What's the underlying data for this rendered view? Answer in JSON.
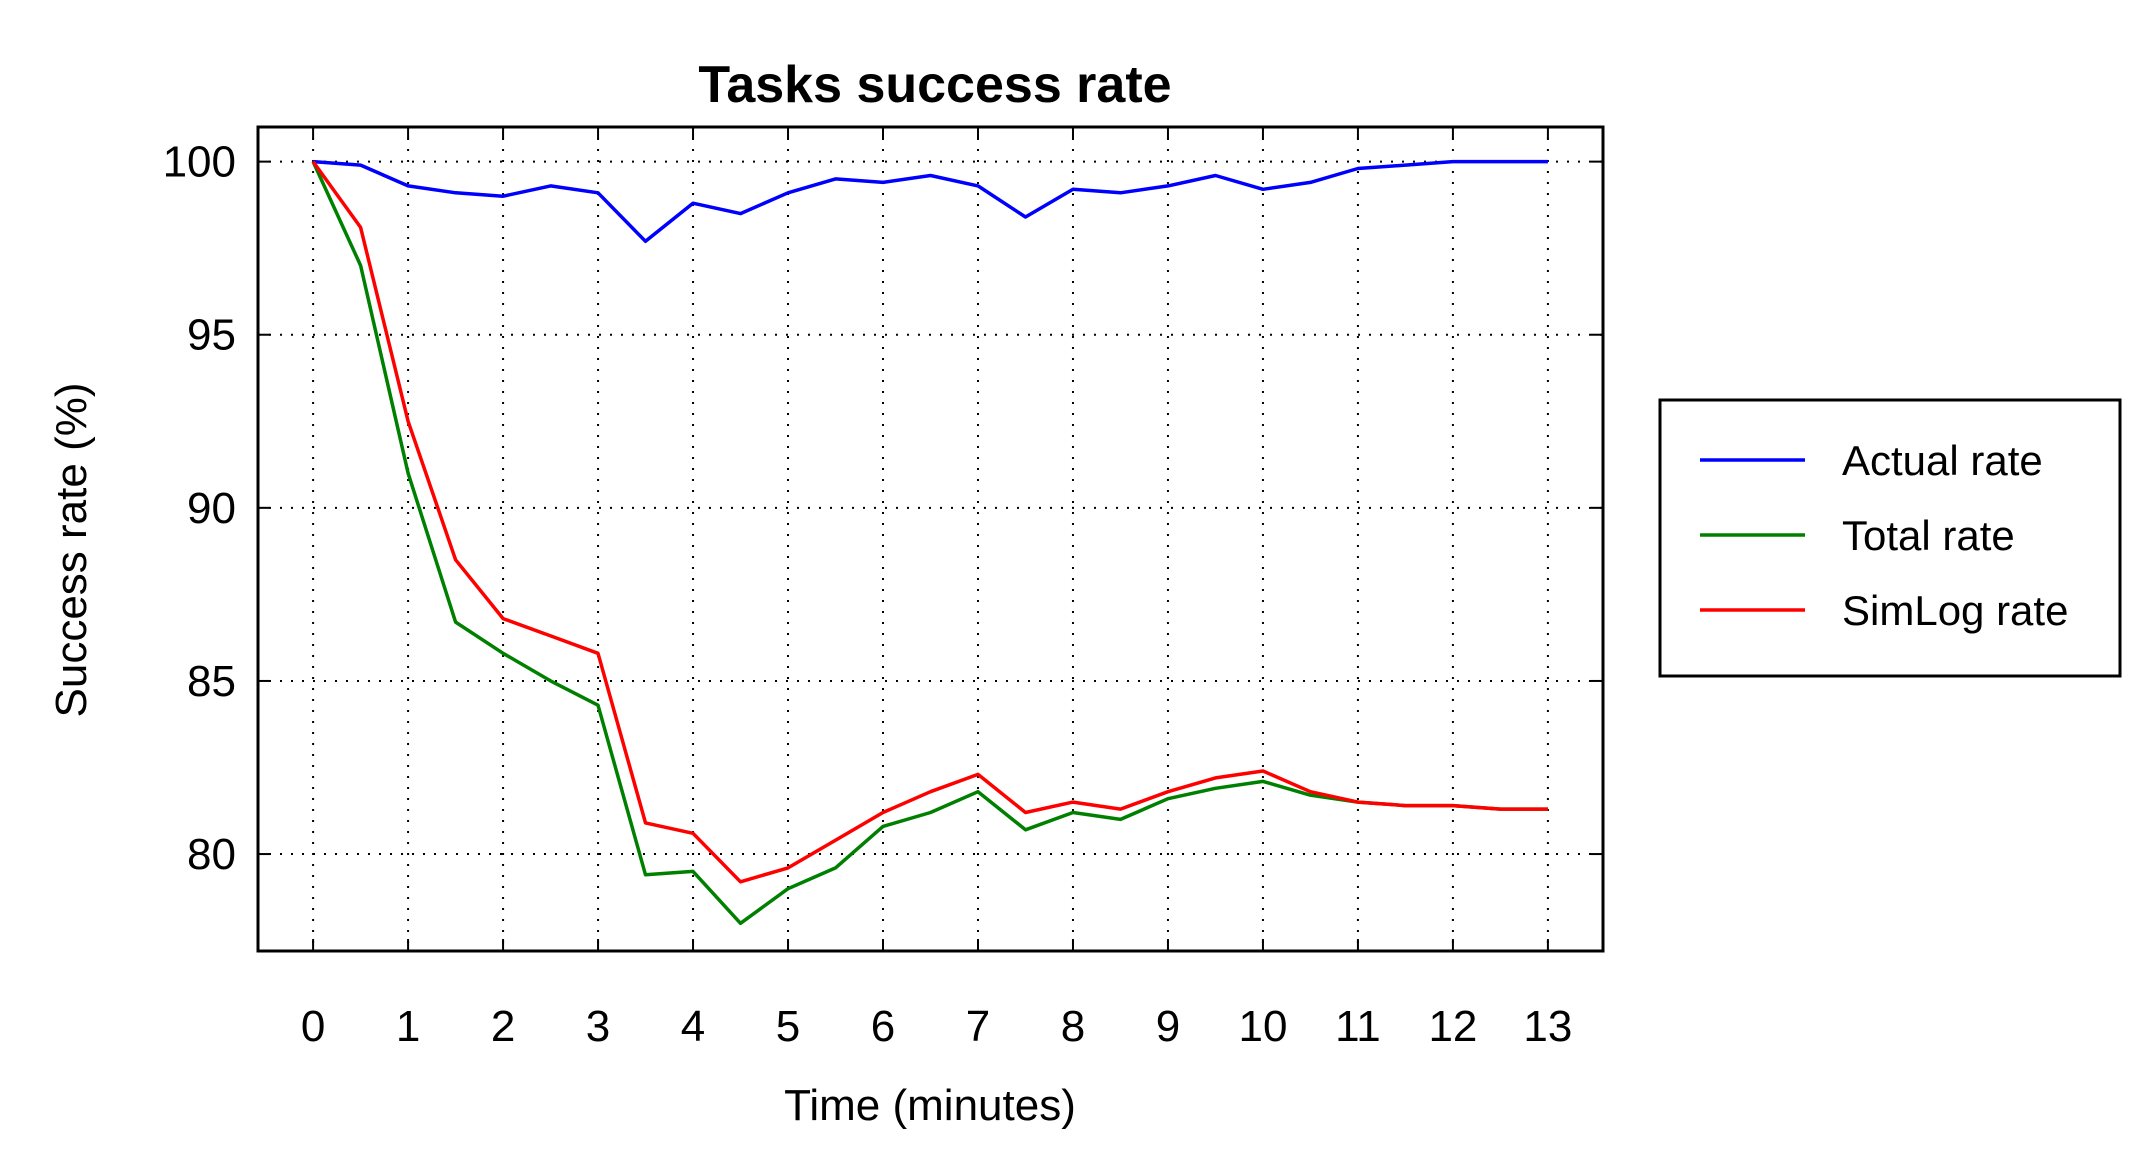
{
  "chart_data": {
    "type": "line",
    "title": "Tasks success rate",
    "xlabel": "Time (minutes)",
    "ylabel": "Success rate (%)",
    "xlim": [
      -0.58,
      13.58
    ],
    "ylim": [
      77.2,
      101
    ],
    "xticks": [
      0,
      1,
      2,
      3,
      4,
      5,
      6,
      7,
      8,
      9,
      10,
      11,
      12,
      13
    ],
    "yticks": [
      80,
      85,
      90,
      95,
      100
    ],
    "grid": true,
    "legend_position": "right-outside",
    "x": [
      0,
      0.5,
      1,
      1.5,
      2,
      2.5,
      3,
      3.5,
      4,
      4.5,
      5,
      5.5,
      6,
      6.5,
      7,
      7.5,
      8,
      8.5,
      9,
      9.5,
      10,
      10.5,
      11,
      11.5,
      12,
      12.5,
      13
    ],
    "series": [
      {
        "name": "Actual rate",
        "color": "#0000ff",
        "values": [
          100,
          99.9,
          99.3,
          99.1,
          99.0,
          99.3,
          99.1,
          97.7,
          98.8,
          98.5,
          99.1,
          99.5,
          99.4,
          99.6,
          99.3,
          98.4,
          99.2,
          99.1,
          99.3,
          99.6,
          99.2,
          99.4,
          99.8,
          99.9,
          100,
          100,
          100
        ]
      },
      {
        "name": "Total rate",
        "color": "#008000",
        "values": [
          100,
          97.0,
          91.0,
          86.7,
          85.8,
          85.0,
          84.3,
          79.4,
          79.5,
          78.0,
          79.0,
          79.6,
          80.8,
          81.2,
          81.8,
          80.7,
          81.2,
          81.0,
          81.6,
          81.9,
          82.1,
          81.7,
          81.5,
          81.4,
          81.4,
          81.3,
          81.3
        ]
      },
      {
        "name": "SimLog rate",
        "color": "#ff0000",
        "values": [
          100,
          98.1,
          92.5,
          88.5,
          86.8,
          86.3,
          85.8,
          80.9,
          80.6,
          79.2,
          79.6,
          80.4,
          81.2,
          81.8,
          82.3,
          81.2,
          81.5,
          81.3,
          81.8,
          82.2,
          82.4,
          81.8,
          81.5,
          81.4,
          81.4,
          81.3,
          81.3
        ]
      }
    ]
  }
}
